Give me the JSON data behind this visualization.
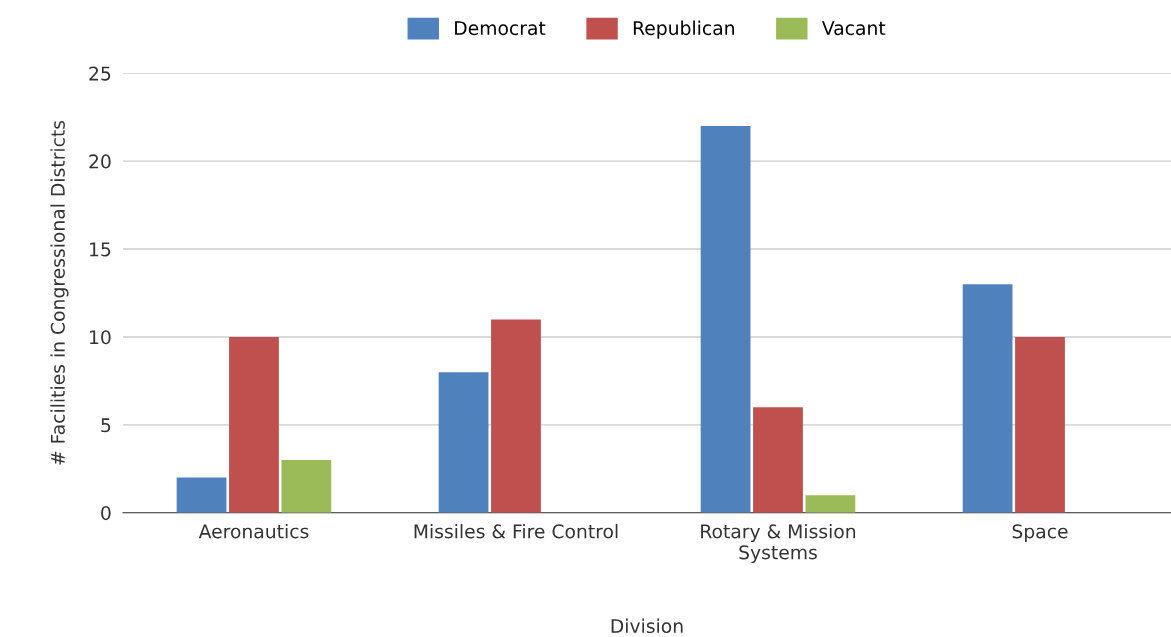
{
  "chart_data": {
    "type": "bar",
    "xlabel": "Division",
    "ylabel": "# Facilities in Congressional Districts",
    "categories": [
      "Aeronautics",
      "Missiles & Fire Control",
      "Rotary & Mission\nSystems",
      "Space"
    ],
    "series": [
      {
        "name": "Democrat",
        "color": "#4f81bd",
        "values": [
          2,
          8,
          22,
          13
        ]
      },
      {
        "name": "Republican",
        "color": "#c0504d",
        "values": [
          10,
          11,
          6,
          10
        ]
      },
      {
        "name": "Vacant",
        "color": "#9bbb59",
        "values": [
          3,
          null,
          1,
          null
        ]
      }
    ],
    "ylim": [
      0,
      25
    ],
    "yticks": [
      0,
      5,
      10,
      15,
      20,
      25
    ],
    "grid": "y",
    "legend": "top"
  }
}
